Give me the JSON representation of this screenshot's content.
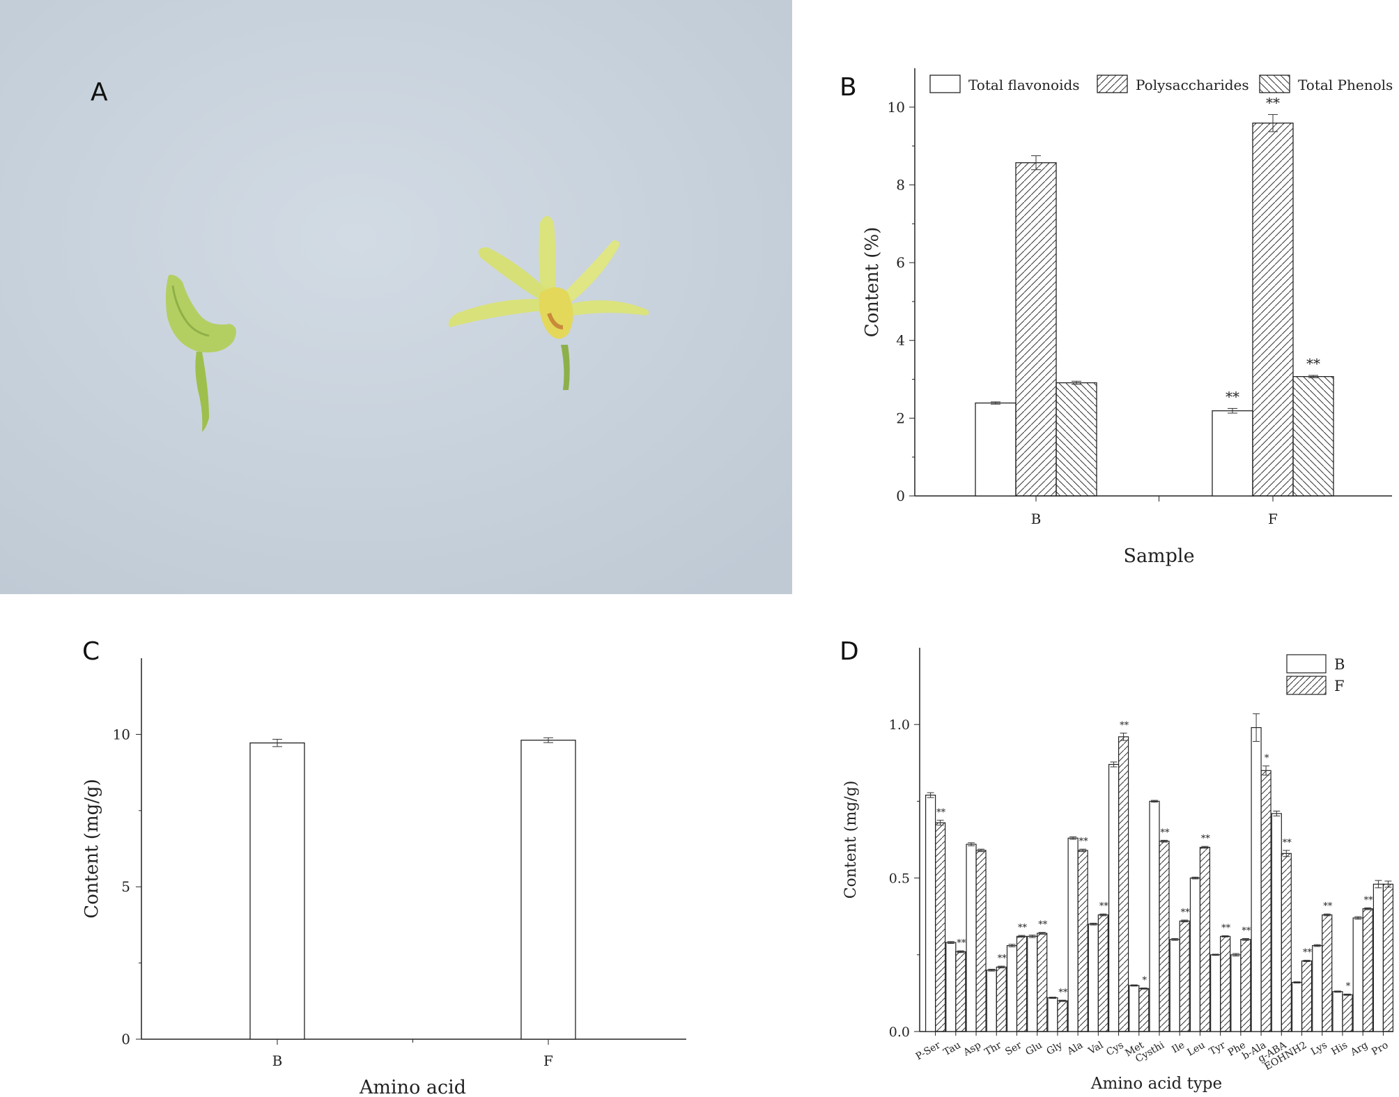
{
  "panels": {
    "a": "A",
    "b": "B",
    "c": "C",
    "d": "D"
  },
  "colors": {
    "photo_background": "#c9d3dd",
    "flower_yellow": "#d8e37a",
    "bud_green": "#a8c85a"
  },
  "chart_data": [
    {
      "id": "B",
      "type": "bar",
      "xlabel": "Sample",
      "ylabel": "Content (%)",
      "categories": [
        "B",
        "F"
      ],
      "ylim": [
        0,
        11
      ],
      "yticks": [
        0,
        2,
        4,
        6,
        8,
        10
      ],
      "legend_position": "top",
      "series": [
        {
          "name": "Total flavonoids",
          "pattern": "none",
          "values": [
            2.39,
            2.19
          ],
          "errors": [
            0.03,
            0.06
          ],
          "sig": [
            "",
            "**"
          ]
        },
        {
          "name": "Polysaccharides",
          "pattern": "diag-right",
          "values": [
            8.57,
            9.59
          ],
          "errors": [
            0.18,
            0.22
          ],
          "sig": [
            "",
            "**"
          ]
        },
        {
          "name": "Total Phenols",
          "pattern": "diag-left",
          "values": [
            2.91,
            3.07
          ],
          "errors": [
            0.04,
            0.03
          ],
          "sig": [
            "",
            "**"
          ]
        }
      ]
    },
    {
      "id": "C",
      "type": "bar",
      "xlabel": "Amino acid",
      "ylabel": "Content (mg/g)",
      "categories": [
        "B",
        "F"
      ],
      "ylim": [
        0,
        12.5
      ],
      "yticks": [
        0,
        5,
        10
      ],
      "series": [
        {
          "values": [
            9.72,
            9.81
          ],
          "errors": [
            0.12,
            0.08
          ]
        }
      ]
    },
    {
      "id": "D",
      "type": "bar",
      "xlabel": "Amino acid type",
      "ylabel": "Content (mg/g)",
      "ylim": [
        0,
        1.25
      ],
      "yticks": [
        0.0,
        0.5,
        1.0
      ],
      "legend_position": "top-right",
      "categories": [
        "P-Ser",
        "Tau",
        "Asp",
        "Thr",
        "Ser",
        "Glu",
        "Gly",
        "Ala",
        "Val",
        "Cys",
        "Met",
        "Cysthi",
        "Ile",
        "Leu",
        "Tyr",
        "Phe",
        "b-Ala",
        "g-ABA",
        "EOHNH2",
        "Lys",
        "His",
        "Arg",
        "Pro"
      ],
      "series": [
        {
          "name": "B",
          "pattern": "none",
          "values": [
            0.77,
            0.29,
            0.61,
            0.2,
            0.28,
            0.31,
            0.11,
            0.63,
            0.35,
            0.87,
            0.15,
            0.75,
            0.3,
            0.5,
            0.25,
            0.25,
            0.99,
            0.71,
            0.16,
            0.28,
            0.13,
            0.37,
            0.48
          ],
          "errors": [
            0.008,
            0.003,
            0.005,
            0.003,
            0.004,
            0.004,
            0.002,
            0.004,
            0.003,
            0.008,
            0.002,
            0.003,
            0.003,
            0.003,
            0.002,
            0.004,
            0.045,
            0.008,
            0.002,
            0.003,
            0.002,
            0.004,
            0.012
          ],
          "sig": [
            "",
            "",
            "",
            "",
            "",
            "",
            "",
            "",
            "",
            "",
            "",
            "",
            "",
            "",
            "",
            "",
            "",
            "",
            "",
            "",
            "",
            "",
            ""
          ]
        },
        {
          "name": "F",
          "pattern": "diag-right",
          "values": [
            0.68,
            0.26,
            0.59,
            0.21,
            0.31,
            0.32,
            0.1,
            0.59,
            0.38,
            0.96,
            0.14,
            0.62,
            0.36,
            0.6,
            0.31,
            0.3,
            0.85,
            0.58,
            0.23,
            0.38,
            0.12,
            0.4,
            0.48
          ],
          "errors": [
            0.008,
            0.003,
            0.004,
            0.003,
            0.003,
            0.003,
            0.002,
            0.004,
            0.003,
            0.012,
            0.002,
            0.003,
            0.003,
            0.003,
            0.002,
            0.003,
            0.015,
            0.01,
            0.002,
            0.003,
            0.002,
            0.003,
            0.01
          ],
          "sig": [
            "**",
            "**",
            "",
            "**",
            "**",
            "**",
            "**",
            "**",
            "**",
            "**",
            "*",
            "**",
            "**",
            "**",
            "**",
            "**",
            "*",
            "**",
            "**",
            "**",
            "*",
            "**",
            ""
          ]
        }
      ]
    }
  ]
}
